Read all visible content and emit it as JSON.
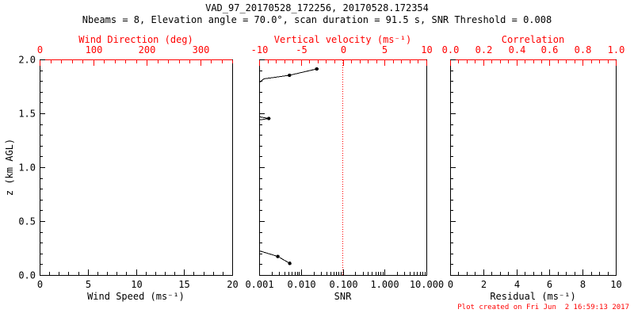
{
  "header": {
    "title": "VAD_97_20170528_172256, 20170528.172354",
    "subtitle": "Nbeams = 8, Elevation angle = 70.0°, scan duration = 91.5 s, SNR Threshold = 0.008"
  },
  "footer": {
    "created": "Plot created on Fri Jun  2 16:59:13 2017"
  },
  "colors": {
    "red": "#ff0000",
    "black": "#000000",
    "background": "#ffffff"
  },
  "chart_data": {
    "type": "line",
    "title": "VAD_97_20170528_172256, 20170528.172354",
    "y_axis": {
      "label": "z (km AGL)",
      "min": 0,
      "max": 2,
      "ticks": [
        {
          "v": 0.0,
          "t": "0.0"
        },
        {
          "v": 0.5,
          "t": "0.5"
        },
        {
          "v": 1.0,
          "t": "1.0"
        },
        {
          "v": 1.5,
          "t": "1.5"
        },
        {
          "v": 2.0,
          "t": "2.0"
        }
      ],
      "minor_step": 0.1
    },
    "panels": [
      {
        "name": "wind-panel",
        "bottom_axis": {
          "label": "Wind Speed (ms⁻¹)",
          "scale": "linear",
          "min": 0,
          "max": 20,
          "minor_step": 1,
          "ticks": [
            {
              "v": 0,
              "t": "0"
            },
            {
              "v": 5,
              "t": "5"
            },
            {
              "v": 10,
              "t": "10"
            },
            {
              "v": 15,
              "t": "15"
            },
            {
              "v": 20,
              "t": "20"
            }
          ]
        },
        "top_axis": {
          "label": "Wind Direction (deg)",
          "scale": "linear",
          "min": 0,
          "max": 360,
          "minor_step": 20,
          "ticks": [
            {
              "v": 0,
              "t": "0"
            },
            {
              "v": 100,
              "t": "100"
            },
            {
              "v": 200,
              "t": "200"
            },
            {
              "v": 300,
              "t": "300"
            }
          ]
        },
        "series": []
      },
      {
        "name": "snr-panel",
        "bottom_axis": {
          "label": "SNR",
          "scale": "log",
          "min": 0.001,
          "max": 10,
          "ticks": [
            {
              "v": 0.001,
              "t": "0.001"
            },
            {
              "v": 0.01,
              "t": "0.010"
            },
            {
              "v": 0.1,
              "t": "0.100"
            },
            {
              "v": 1,
              "t": "1.000"
            },
            {
              "v": 10,
              "t": "10.000"
            }
          ]
        },
        "top_axis": {
          "label": "Vertical velocity (ms⁻¹)",
          "scale": "linear",
          "min": -10,
          "max": 10,
          "minor_step": 1,
          "ticks": [
            {
              "v": -10,
              "t": "-10"
            },
            {
              "v": -5,
              "t": "-5"
            },
            {
              "v": 0,
              "t": "0"
            },
            {
              "v": 5,
              "t": "5"
            },
            {
              "v": 10,
              "t": "10"
            }
          ]
        },
        "reference_line": {
          "x_snr": 0.1,
          "style": "dotted",
          "color": "#ff0000"
        },
        "series": [
          {
            "name": "snr-profile-upper",
            "points": [
              [
                0.001,
                1.785
              ],
              [
                0.0013,
                1.82
              ],
              [
                0.0053,
                1.853
              ],
              [
                0.024,
                1.912
              ]
            ],
            "markers": [
              [
                0.0053,
                1.853
              ],
              [
                0.024,
                1.912
              ]
            ]
          },
          {
            "name": "snr-profile-mid",
            "points": [
              [
                0.001,
                1.468
              ],
              [
                0.0017,
                1.452
              ],
              [
                0.001,
                1.438
              ]
            ],
            "markers": [
              [
                0.0017,
                1.452
              ]
            ]
          },
          {
            "name": "snr-profile-lower",
            "points": [
              [
                0.001,
                0.225
              ],
              [
                0.0028,
                0.172
              ],
              [
                0.0054,
                0.108
              ]
            ],
            "markers": [
              [
                0.0028,
                0.172
              ],
              [
                0.0054,
                0.108
              ]
            ]
          }
        ]
      },
      {
        "name": "residual-panel",
        "bottom_axis": {
          "label": "Residual (ms⁻¹)",
          "scale": "linear",
          "min": 0,
          "max": 10,
          "minor_step": 0.5,
          "ticks": [
            {
              "v": 0,
              "t": "0"
            },
            {
              "v": 2,
              "t": "2"
            },
            {
              "v": 4,
              "t": "4"
            },
            {
              "v": 6,
              "t": "6"
            },
            {
              "v": 8,
              "t": "8"
            },
            {
              "v": 10,
              "t": "10"
            }
          ]
        },
        "top_axis": {
          "label": "Correlation",
          "scale": "linear",
          "min": 0,
          "max": 1,
          "minor_step": 0.05,
          "ticks": [
            {
              "v": 0.0,
              "t": "0.0"
            },
            {
              "v": 0.2,
              "t": "0.2"
            },
            {
              "v": 0.4,
              "t": "0.4"
            },
            {
              "v": 0.6,
              "t": "0.6"
            },
            {
              "v": 0.8,
              "t": "0.8"
            },
            {
              "v": 1.0,
              "t": "1.0"
            }
          ]
        },
        "series": []
      }
    ]
  }
}
